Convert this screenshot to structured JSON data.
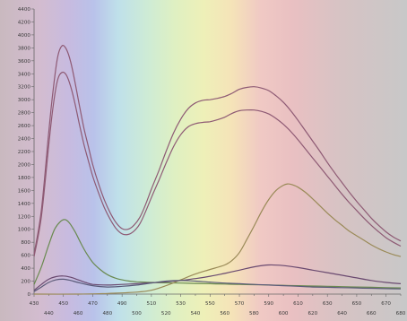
{
  "chart_data": {
    "type": "line",
    "title": "",
    "xlabel": "",
    "ylabel": "",
    "xlim": [
      430,
      680
    ],
    "ylim": [
      0,
      4400
    ],
    "x_ticks_lower": [
      430,
      450,
      470,
      490,
      510,
      530,
      550,
      570,
      590,
      610,
      630,
      650,
      670
    ],
    "x_ticks_upper": [
      440,
      460,
      480,
      500,
      520,
      540,
      560,
      580,
      600,
      620,
      640,
      660,
      680
    ],
    "y_ticks": [
      0,
      200,
      400,
      600,
      800,
      1000,
      1200,
      1400,
      1600,
      1800,
      2000,
      2200,
      2400,
      2600,
      2800,
      3000,
      3200,
      3400,
      3600,
      3800,
      4000,
      4200,
      4400
    ],
    "grid": false,
    "legend": "none",
    "background": "visible-spectrum gradient",
    "series": [
      {
        "color": "#8e5a74",
        "x": [
          430,
          435,
          440,
          443,
          446,
          449,
          452,
          455,
          458,
          461,
          464,
          467,
          470,
          474,
          478,
          482,
          486,
          490,
          494,
          498,
          502,
          506,
          510,
          515,
          520,
          525,
          530,
          535,
          540,
          545,
          550,
          555,
          560,
          565,
          570,
          575,
          580,
          585,
          590,
          595,
          600,
          605,
          610,
          615,
          620,
          625,
          630,
          635,
          640,
          645,
          650,
          655,
          660,
          665,
          670,
          675,
          680
        ],
        "values": [
          620,
          1300,
          2500,
          3150,
          3650,
          3830,
          3780,
          3580,
          3260,
          2900,
          2560,
          2280,
          2000,
          1700,
          1450,
          1250,
          1100,
          1010,
          1000,
          1060,
          1180,
          1380,
          1620,
          1900,
          2200,
          2480,
          2700,
          2860,
          2950,
          2990,
          3000,
          3020,
          3050,
          3100,
          3160,
          3190,
          3200,
          3180,
          3140,
          3060,
          2960,
          2830,
          2680,
          2520,
          2360,
          2200,
          2030,
          1870,
          1720,
          1570,
          1430,
          1300,
          1170,
          1060,
          960,
          880,
          820
        ]
      },
      {
        "color": "#8e5a74",
        "x": [
          430,
          435,
          440,
          443,
          446,
          449,
          452,
          455,
          458,
          461,
          464,
          467,
          470,
          474,
          478,
          482,
          486,
          490,
          494,
          498,
          502,
          506,
          510,
          515,
          520,
          525,
          530,
          535,
          540,
          545,
          550,
          555,
          560,
          565,
          570,
          575,
          580,
          585,
          590,
          595,
          600,
          605,
          610,
          615,
          620,
          625,
          630,
          635,
          640,
          645,
          650,
          655,
          660,
          665,
          670,
          675,
          680
        ],
        "values": [
          580,
          1200,
          2300,
          2900,
          3300,
          3420,
          3380,
          3200,
          2930,
          2610,
          2310,
          2060,
          1820,
          1560,
          1330,
          1150,
          1010,
          930,
          920,
          970,
          1080,
          1270,
          1490,
          1750,
          2020,
          2270,
          2460,
          2580,
          2630,
          2650,
          2660,
          2690,
          2730,
          2790,
          2830,
          2840,
          2840,
          2820,
          2780,
          2710,
          2620,
          2510,
          2380,
          2240,
          2100,
          1960,
          1820,
          1680,
          1540,
          1410,
          1290,
          1170,
          1060,
          960,
          870,
          800,
          740
        ]
      },
      {
        "color": "#6a8a50",
        "x": [
          430,
          435,
          440,
          444,
          448,
          451,
          454,
          458,
          462,
          466,
          470,
          475,
          480,
          485,
          490,
          495,
          500,
          505,
          510,
          520,
          530,
          540,
          550,
          560,
          570,
          580,
          590,
          600,
          610,
          620,
          630,
          640,
          650,
          660,
          670,
          680
        ],
        "values": [
          150,
          420,
          760,
          1000,
          1120,
          1150,
          1100,
          960,
          780,
          620,
          490,
          380,
          300,
          250,
          220,
          200,
          190,
          185,
          180,
          175,
          170,
          165,
          160,
          155,
          150,
          145,
          140,
          135,
          130,
          125,
          120,
          115,
          110,
          105,
          100,
          95
        ]
      },
      {
        "color": "#9a8a58",
        "x": [
          430,
          460,
          480,
          500,
          510,
          520,
          530,
          540,
          550,
          560,
          565,
          570,
          575,
          580,
          585,
          590,
          595,
          600,
          603,
          606,
          610,
          615,
          620,
          625,
          630,
          635,
          640,
          645,
          650,
          655,
          660,
          665,
          670,
          675,
          680
        ],
        "values": [
          0,
          0,
          10,
          30,
          60,
          130,
          220,
          310,
          380,
          450,
          520,
          640,
          840,
          1050,
          1270,
          1460,
          1600,
          1680,
          1700,
          1690,
          1650,
          1570,
          1470,
          1360,
          1250,
          1150,
          1060,
          970,
          900,
          830,
          760,
          700,
          650,
          610,
          580
        ]
      },
      {
        "color": "#6a4a70",
        "x": [
          430,
          435,
          440,
          445,
          450,
          455,
          460,
          465,
          470,
          480,
          490,
          500,
          510,
          520,
          530,
          540,
          550,
          560,
          570,
          580,
          590,
          600,
          610,
          620,
          630,
          640,
          650,
          660,
          670,
          680
        ],
        "values": [
          60,
          150,
          230,
          270,
          280,
          260,
          220,
          180,
          150,
          140,
          150,
          160,
          175,
          190,
          210,
          240,
          275,
          320,
          370,
          420,
          450,
          440,
          410,
          370,
          330,
          290,
          250,
          210,
          180,
          160
        ]
      },
      {
        "color": "#5a5a78",
        "x": [
          430,
          435,
          440,
          445,
          450,
          455,
          460,
          470,
          480,
          490,
          500,
          510,
          520,
          530,
          540,
          550,
          560,
          570,
          580,
          590,
          600,
          610,
          620,
          630,
          640,
          650,
          660,
          670,
          680
        ],
        "values": [
          40,
          110,
          180,
          220,
          230,
          210,
          180,
          130,
          110,
          120,
          140,
          170,
          200,
          210,
          200,
          185,
          170,
          160,
          150,
          140,
          130,
          120,
          110,
          105,
          100,
          95,
          90,
          85,
          80
        ]
      }
    ]
  }
}
